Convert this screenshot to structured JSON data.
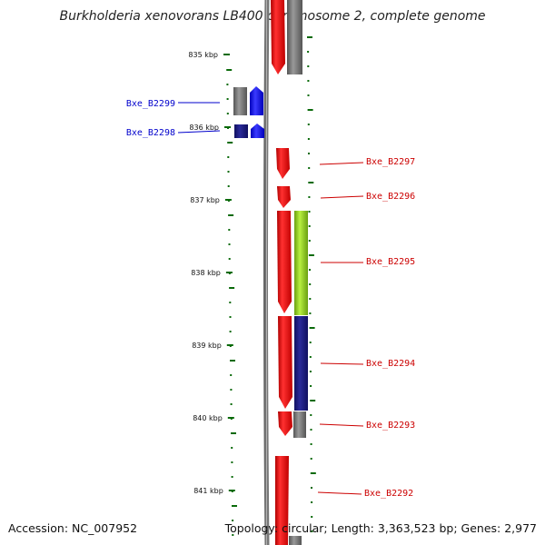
{
  "title": "Burkholderia xenovorans LB400 chromosome 2, complete genome",
  "footer": {
    "accession": "Accession: NC_007952",
    "summary": "Topology: circular; Length: 3,363,523 bp; Genes: 2,977"
  },
  "scale": {
    "unit": "kbp",
    "ticks": [
      {
        "value": 835,
        "label": "835 kbp"
      },
      {
        "value": 836,
        "label": "836 kbp"
      },
      {
        "value": 837,
        "label": "837 kbp"
      },
      {
        "value": 838,
        "label": "838 kbp"
      },
      {
        "value": 839,
        "label": "839 kbp"
      },
      {
        "value": 840,
        "label": "840 kbp"
      },
      {
        "value": 841,
        "label": "841 kbp"
      }
    ]
  },
  "colors": {
    "forward_label": "#0000cc",
    "reverse_label": "#cc0000",
    "gene_red": "#ee0000",
    "gene_blue": "#1a1aee",
    "gene_gray": "#707070",
    "gene_navy": "#1a1a7a",
    "gene_green": "#88cc22",
    "tick": "#0a6a0a"
  },
  "genes": [
    {
      "name": "Bxe_B2299",
      "strand": "forward",
      "label_color": "#0000cc"
    },
    {
      "name": "Bxe_B2298",
      "strand": "forward",
      "label_color": "#0000cc"
    },
    {
      "name": "Bxe_B2297",
      "strand": "reverse",
      "label_color": "#cc0000"
    },
    {
      "name": "Bxe_B2296",
      "strand": "reverse",
      "label_color": "#cc0000"
    },
    {
      "name": "Bxe_B2295",
      "strand": "reverse",
      "label_color": "#cc0000"
    },
    {
      "name": "Bxe_B2294",
      "strand": "reverse",
      "label_color": "#cc0000"
    },
    {
      "name": "Bxe_B2293",
      "strand": "reverse",
      "label_color": "#cc0000"
    },
    {
      "name": "Bxe_B2292",
      "strand": "reverse",
      "label_color": "#cc0000"
    }
  ]
}
